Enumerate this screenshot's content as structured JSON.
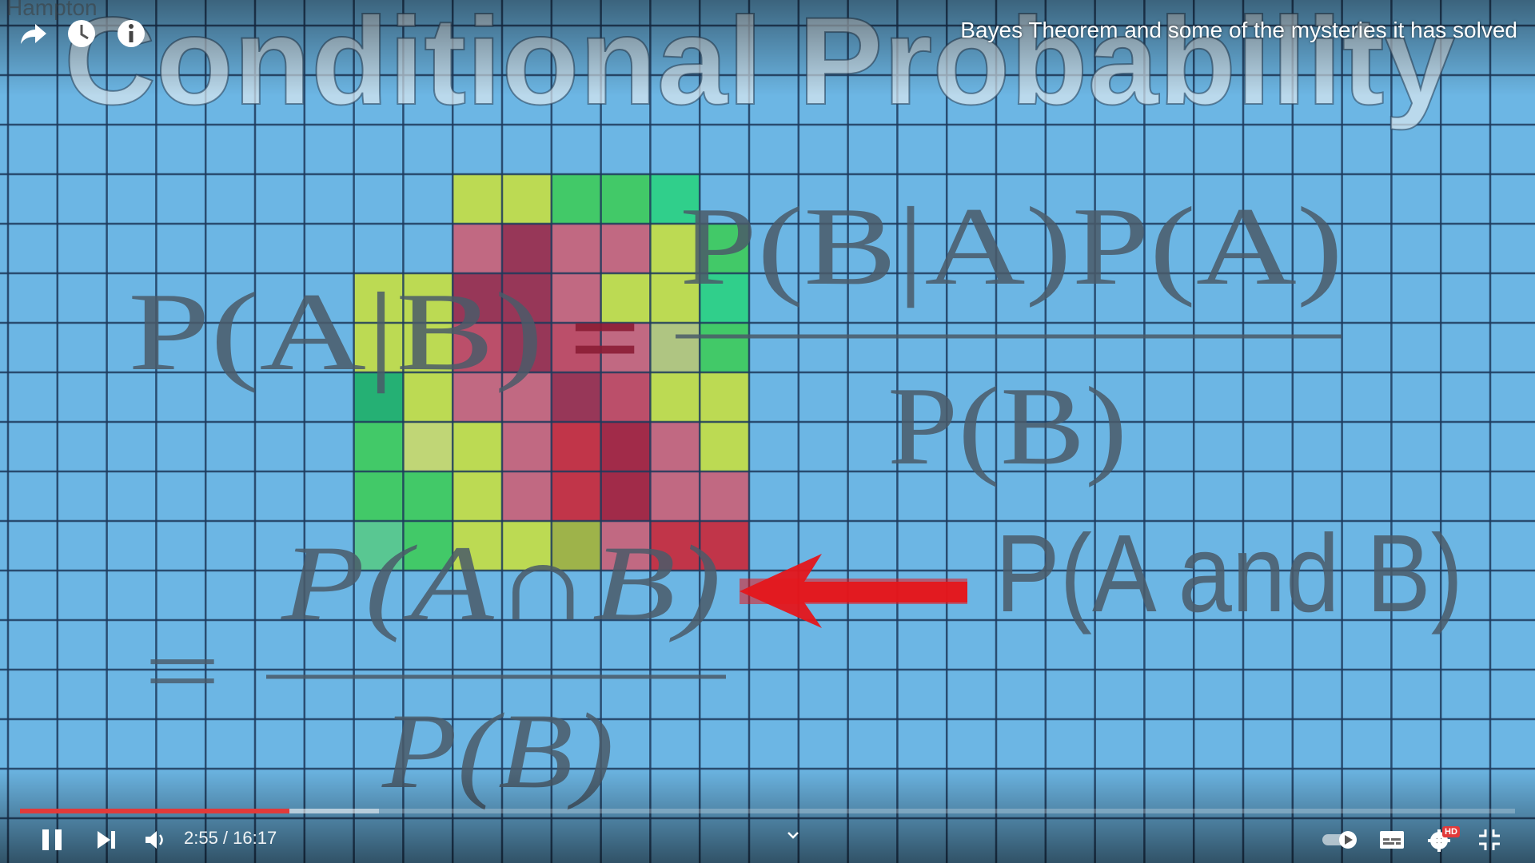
{
  "slide": {
    "heading": "Conditional Probability",
    "watermark": "Hampton",
    "bayes_numerator": "P(B|A)P(A)",
    "bayes_lhs": "P(A|B)",
    "bayes_equals": "=",
    "bayes_denominator": "P(B)",
    "cond_equals": "=",
    "cond_numerator": "P(A∩B)",
    "cond_denominator": "P(B)",
    "arrow_label": "P(A and B)",
    "grid": [
      [
        "",
        "",
        "ly",
        "ly",
        "g",
        "g",
        "tq",
        ""
      ],
      [
        "",
        "",
        "pk",
        "mr",
        "pk",
        "pk",
        "ly",
        "g"
      ],
      [
        "ly",
        "ly",
        "mr",
        "mr",
        "pk",
        "ly",
        "ly",
        "tq"
      ],
      [
        "ly",
        "ly",
        "rs",
        "mr",
        "rs",
        "pk",
        "sg",
        "g"
      ],
      [
        "dg",
        "ly",
        "pk",
        "pk",
        "mr",
        "rs",
        "ly",
        "ly"
      ],
      [
        "g",
        "pl",
        "ly",
        "pk",
        "rd",
        "dr",
        "pk",
        "ly"
      ],
      [
        "g",
        "g",
        "ly",
        "pk",
        "rd",
        "dr",
        "pk",
        "pk"
      ],
      [
        "lg",
        "g",
        "ly",
        "ly",
        "ol",
        "pk",
        "rd",
        "rd"
      ]
    ],
    "colors": {
      "background": "#6cb6e4",
      "grid_line": "#1d3a5c",
      "heading_fill": "#d8e6ef",
      "formula_text": "#4a5a68",
      "arrow": "#e5161b",
      "cells": {
        "ly": "#c3dd46",
        "g": "#3fcb5d",
        "tq": "#2bd183",
        "pk": "#c9637a",
        "mr": "#9b2d4c",
        "rs": "#c2475f",
        "sg": "#b5c77a",
        "dg": "#20b06a",
        "pl": "#c8d96c",
        "rd": "#c92a3c",
        "dr": "#a6203c",
        "ol": "#a3b33d",
        "lg": "#58c98b"
      }
    }
  },
  "overlay": {
    "title": "Bayes Theorem and some of the mysteries it has solved",
    "icons": {
      "share": "share-arrow-icon",
      "watch_later": "clock-icon",
      "info": "info-icon"
    }
  },
  "player": {
    "played_fraction": 0.18,
    "buffered_fraction": 0.24,
    "current_time": "2:55",
    "duration": "16:17",
    "time_text": "2:55 / 16:17",
    "accent": "#e23a3a",
    "icons": {
      "pause": "pause-icon",
      "next": "next-icon",
      "volume": "volume-icon",
      "chevron": "chevron-down-icon",
      "autoplay": "autoplay-toggle-icon",
      "subtitles": "subtitles-icon",
      "settings": "settings-gear-icon",
      "hd_badge": "HD",
      "exit_fullscreen": "exit-fullscreen-icon"
    }
  }
}
